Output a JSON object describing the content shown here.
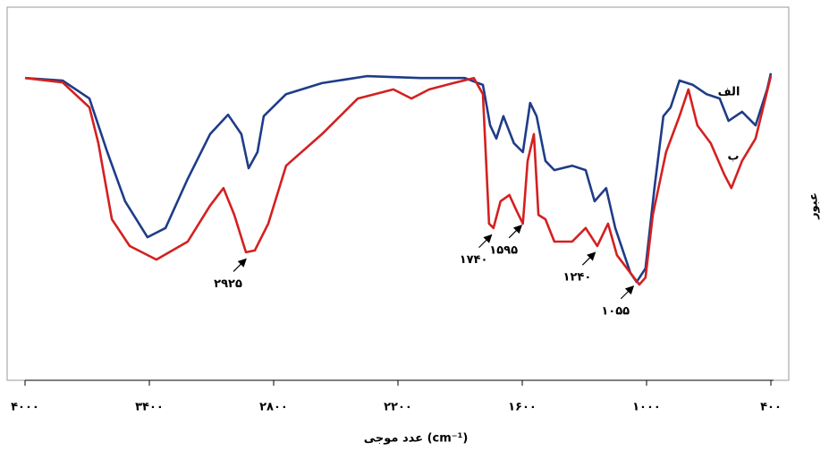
{
  "chart_data": {
    "type": "line",
    "x_label": "عدد موجی (cm⁻¹)",
    "y_label": "عبور",
    "xlim": [
      4000,
      400
    ],
    "ylim": [
      0,
      100
    ],
    "xticks": [
      {
        "value": 4000,
        "label": "۴۰۰۰"
      },
      {
        "value": 3400,
        "label": "۳۴۰۰"
      },
      {
        "value": 2800,
        "label": "۲۸۰۰"
      },
      {
        "value": 2200,
        "label": "۲۲۰۰"
      },
      {
        "value": 1600,
        "label": "۱۶۰۰"
      },
      {
        "value": 1000,
        "label": "۱۰۰۰"
      },
      {
        "value": 400,
        "label": "۴۰۰"
      }
    ],
    "series": [
      {
        "name": "الف",
        "color": "#1f3c88",
        "x": [
          4000,
          3819,
          3689,
          3603,
          3517,
          3409,
          3322,
          3215,
          3107,
          3020,
          2956,
          2921,
          2878,
          2848,
          2740,
          2567,
          2351,
          2092,
          1877,
          1790,
          1755,
          1725,
          1691,
          1640,
          1597,
          1562,
          1531,
          1488,
          1445,
          1359,
          1294,
          1251,
          1195,
          1151,
          1078,
          1048,
          1005,
          962,
          919,
          884,
          841,
          776,
          711,
          647,
          604,
          539,
          474,
          418,
          400
        ],
        "values": [
          82.4,
          81.7,
          76.8,
          62.2,
          48.8,
          39.0,
          41.5,
          54.9,
          67.1,
          72.4,
          67.1,
          57.8,
          62.2,
          72.0,
          78.0,
          81.0,
          82.9,
          82.4,
          82.4,
          80.5,
          69.5,
          65.9,
          72.0,
          64.6,
          62.2,
          75.6,
          72.0,
          59.8,
          57.3,
          58.5,
          57.3,
          48.8,
          52.4,
          41.5,
          29.3,
          26.8,
          30.5,
          52.4,
          72.0,
          74.4,
          81.7,
          80.5,
          78.0,
          76.8,
          70.7,
          73.2,
          69.5,
          79.3,
          83.7
        ]
      },
      {
        "name": "ب",
        "color": "#d42020",
        "x": [
          4000,
          3819,
          3689,
          3646,
          3581,
          3495,
          3366,
          3215,
          3107,
          3042,
          2990,
          2934,
          2891,
          2826,
          2740,
          2567,
          2394,
          2222,
          2135,
          2049,
          1920,
          1834,
          1790,
          1760,
          1739,
          1705,
          1662,
          1628,
          1597,
          1574,
          1544,
          1522,
          1488,
          1445,
          1359,
          1294,
          1238,
          1186,
          1143,
          1078,
          1035,
          1005,
          970,
          906,
          841,
          798,
          755,
          690,
          625,
          591,
          539,
          474,
          400
        ],
        "values": [
          82.4,
          81.2,
          74.4,
          64.6,
          43.9,
          36.6,
          32.9,
          37.8,
          47.6,
          52.4,
          45.1,
          34.9,
          35.4,
          42.7,
          58.5,
          67.1,
          76.8,
          79.3,
          76.8,
          79.3,
          81.2,
          82.4,
          78.0,
          42.7,
          41.5,
          48.8,
          50.5,
          46.3,
          42.7,
          59.8,
          67.1,
          45.1,
          43.9,
          37.8,
          37.8,
          41.5,
          36.6,
          42.7,
          34.1,
          29.3,
          26.1,
          28.0,
          45.1,
          62.2,
          72.0,
          79.3,
          69.5,
          64.6,
          56.1,
          52.4,
          59.8,
          65.9,
          82.9
        ]
      }
    ],
    "annotations": [
      {
        "value": 2925,
        "label": "۲۹۲۵"
      },
      {
        "value": 1740,
        "label": "۱۷۴۰"
      },
      {
        "value": 1595,
        "label": "۱۵۹۵"
      },
      {
        "value": 1240,
        "label": "۱۲۴۰"
      },
      {
        "value": 1055,
        "label": "۱۰۵۵"
      }
    ]
  }
}
